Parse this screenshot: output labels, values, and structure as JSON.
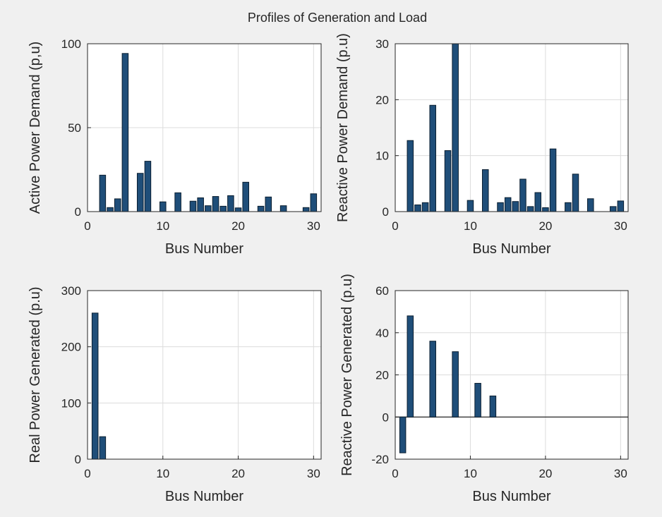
{
  "figure_title": "Profiles of Generation and Load",
  "colors": {
    "bar_fill": "#1f4e79",
    "bar_edge": "#0a1e30",
    "grid": "#dcdcdc",
    "axis": "#262626",
    "background": "#f0f0f0"
  },
  "chart_data": [
    {
      "type": "bar",
      "xlabel": "Bus Number",
      "ylabel": "Active Power Demand (p,u)",
      "xlim": [
        0,
        31
      ],
      "ylim": [
        0,
        100
      ],
      "xticks": [
        "0",
        "10",
        "20",
        "30"
      ],
      "yticks": [
        "0",
        "50",
        "100"
      ],
      "grid": true,
      "x": [
        2,
        3,
        4,
        5,
        7,
        8,
        10,
        12,
        14,
        15,
        16,
        17,
        18,
        19,
        20,
        21,
        23,
        24,
        26,
        29,
        30
      ],
      "values": [
        21.7,
        2.4,
        7.6,
        94.2,
        22.8,
        30,
        5.8,
        11.2,
        6.2,
        8.2,
        3.5,
        9,
        3.2,
        9.5,
        2.2,
        17.5,
        3.2,
        8.7,
        3.5,
        2.4,
        10.6
      ]
    },
    {
      "type": "bar",
      "xlabel": "Bus Number",
      "ylabel": "Reactive Power Demand (p.u)",
      "xlim": [
        0,
        31
      ],
      "ylim": [
        0,
        30
      ],
      "xticks": [
        "0",
        "10",
        "20",
        "30"
      ],
      "yticks": [
        "0",
        "10",
        "20",
        "30"
      ],
      "grid": true,
      "x": [
        2,
        3,
        4,
        5,
        7,
        8,
        10,
        12,
        14,
        15,
        16,
        17,
        18,
        19,
        20,
        21,
        23,
        24,
        26,
        29,
        30
      ],
      "values": [
        12.7,
        1.2,
        1.6,
        19,
        10.9,
        30,
        2,
        7.5,
        1.6,
        2.5,
        1.8,
        5.8,
        0.9,
        3.4,
        0.7,
        11.2,
        1.6,
        6.7,
        2.3,
        0.9,
        1.9
      ]
    },
    {
      "type": "bar",
      "xlabel": "Bus Number",
      "ylabel": "Real Power Generated (p.u)",
      "xlim": [
        0,
        31
      ],
      "ylim": [
        0,
        300
      ],
      "xticks": [
        "0",
        "10",
        "20",
        "30"
      ],
      "yticks": [
        "0",
        "100",
        "200",
        "300"
      ],
      "grid": true,
      "x": [
        1,
        2
      ],
      "values": [
        260,
        40
      ]
    },
    {
      "type": "bar",
      "xlabel": "Bus Number",
      "ylabel": "Reactive Power Generated (p.u)",
      "xlim": [
        0,
        31
      ],
      "ylim": [
        -20,
        60
      ],
      "xticks": [
        "0",
        "10",
        "20",
        "30"
      ],
      "yticks": [
        "-20",
        "0",
        "20",
        "40",
        "60"
      ],
      "grid": true,
      "zero_line": true,
      "x": [
        1,
        2,
        5,
        8,
        11,
        13
      ],
      "values": [
        -17,
        48,
        36,
        31,
        16,
        10
      ]
    }
  ]
}
